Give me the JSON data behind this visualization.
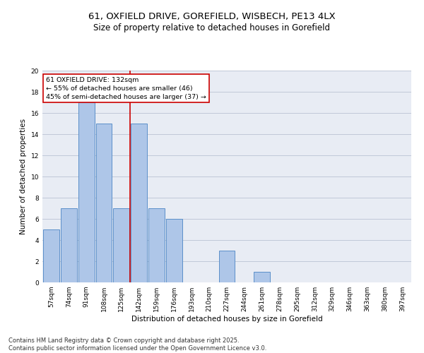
{
  "title1": "61, OXFIELD DRIVE, GOREFIELD, WISBECH, PE13 4LX",
  "title2": "Size of property relative to detached houses in Gorefield",
  "xlabel": "Distribution of detached houses by size in Gorefield",
  "ylabel": "Number of detached properties",
  "categories": [
    "57sqm",
    "74sqm",
    "91sqm",
    "108sqm",
    "125sqm",
    "142sqm",
    "159sqm",
    "176sqm",
    "193sqm",
    "210sqm",
    "227sqm",
    "244sqm",
    "261sqm",
    "278sqm",
    "295sqm",
    "312sqm",
    "329sqm",
    "346sqm",
    "363sqm",
    "380sqm",
    "397sqm"
  ],
  "values": [
    5,
    7,
    17,
    15,
    7,
    15,
    7,
    6,
    0,
    0,
    3,
    0,
    1,
    0,
    0,
    0,
    0,
    0,
    0,
    0,
    0
  ],
  "bar_color": "#aec6e8",
  "bar_edgecolor": "#5b8fc9",
  "bar_linewidth": 0.7,
  "redline_x": 4.5,
  "redline_label": "61 OXFIELD DRIVE: 132sqm",
  "annotation_line1": "← 55% of detached houses are smaller (46)",
  "annotation_line2": "45% of semi-detached houses are larger (37) →",
  "annotation_box_edgecolor": "#cc0000",
  "annotation_box_facecolor": "white",
  "ylim": [
    0,
    20
  ],
  "yticks": [
    0,
    2,
    4,
    6,
    8,
    10,
    12,
    14,
    16,
    18,
    20
  ],
  "grid_color": "#c0c8d8",
  "background_color": "#e8ecf4",
  "footer": "Contains HM Land Registry data © Crown copyright and database right 2025.\nContains public sector information licensed under the Open Government Licence v3.0.",
  "title_fontsize": 9.5,
  "subtitle_fontsize": 8.5,
  "axis_label_fontsize": 7.5,
  "tick_fontsize": 6.5,
  "footer_fontsize": 6,
  "annotation_fontsize": 6.8
}
